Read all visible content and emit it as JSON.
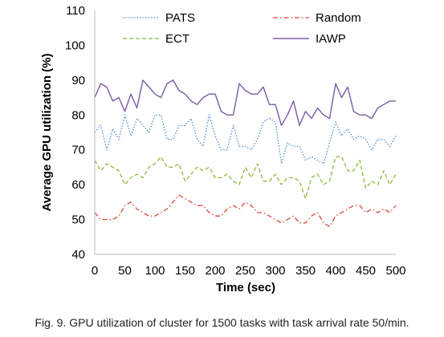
{
  "chart_data": {
    "type": "line",
    "xlabel": "Time (sec)",
    "ylabel": "Average GPU utilization (%)",
    "xlim": [
      0,
      500
    ],
    "ylim": [
      40,
      110
    ],
    "x_ticks": [
      0,
      50,
      100,
      150,
      200,
      250,
      300,
      350,
      400,
      450,
      500
    ],
    "y_ticks": [
      40,
      50,
      60,
      70,
      80,
      90,
      100,
      110
    ],
    "grid": false,
    "legend_position": "top",
    "x": [
      0,
      10,
      20,
      30,
      40,
      50,
      60,
      70,
      80,
      90,
      100,
      110,
      120,
      130,
      140,
      150,
      160,
      170,
      180,
      190,
      200,
      210,
      220,
      230,
      240,
      250,
      260,
      270,
      280,
      290,
      300,
      310,
      320,
      330,
      340,
      350,
      360,
      370,
      380,
      390,
      400,
      410,
      420,
      430,
      440,
      450,
      460,
      470,
      480,
      490,
      500
    ],
    "series": [
      {
        "name": "PATS",
        "color": "#4A8FD0",
        "style": "dotted",
        "values": [
          75,
          77,
          70,
          76,
          73,
          80,
          74,
          79,
          77,
          75,
          80,
          80,
          73,
          73,
          77,
          77,
          79,
          73,
          71,
          80,
          74,
          70,
          70,
          77,
          71,
          71,
          70,
          73,
          78,
          79,
          78,
          66,
          72,
          71,
          71,
          67,
          68,
          67,
          66,
          72,
          78,
          74,
          76,
          73,
          74,
          73,
          70,
          73,
          73,
          71,
          74
        ]
      },
      {
        "name": "Random",
        "color": "#D9453A",
        "style": "dashdot",
        "values": [
          52,
          50,
          50,
          50,
          51,
          54,
          55,
          53,
          52,
          51,
          51,
          52,
          53,
          55,
          57,
          56,
          55,
          54,
          54,
          52,
          51,
          51,
          53,
          54,
          53,
          55,
          54,
          52,
          52,
          51,
          50,
          49,
          50,
          51,
          49,
          49,
          51,
          52,
          49,
          48,
          51,
          52,
          53,
          54,
          54,
          52,
          53,
          52,
          53,
          52,
          54
        ]
      },
      {
        "name": "ECT",
        "color": "#8DB83C",
        "style": "dashed",
        "values": [
          67,
          64,
          66,
          65,
          64,
          60,
          62,
          63,
          62,
          65,
          66,
          68,
          65,
          65,
          66,
          61,
          63,
          65,
          64,
          65,
          62,
          62,
          63,
          61,
          60,
          65,
          62,
          66,
          61,
          61,
          63,
          60,
          62,
          62,
          61,
          56,
          62,
          63,
          60,
          61,
          68,
          68,
          64,
          64,
          67,
          59,
          61,
          60,
          64,
          60,
          63
        ]
      },
      {
        "name": "IAWP",
        "color": "#7B5AA6",
        "style": "solid",
        "values": [
          85,
          89,
          88,
          84,
          85,
          81,
          86,
          82,
          90,
          88,
          86,
          85,
          89,
          90,
          87,
          86,
          84,
          83,
          85,
          86,
          86,
          81,
          80,
          80,
          89,
          87,
          86,
          86,
          88,
          83,
          83,
          77,
          80,
          84,
          77,
          81,
          79,
          82,
          80,
          79,
          89,
          85,
          88,
          81,
          80,
          80,
          79,
          82,
          83,
          84,
          84
        ]
      }
    ]
  },
  "caption": "Fig. 9. GPU utilization of cluster for 1500 tasks with task arrival rate 50/min."
}
